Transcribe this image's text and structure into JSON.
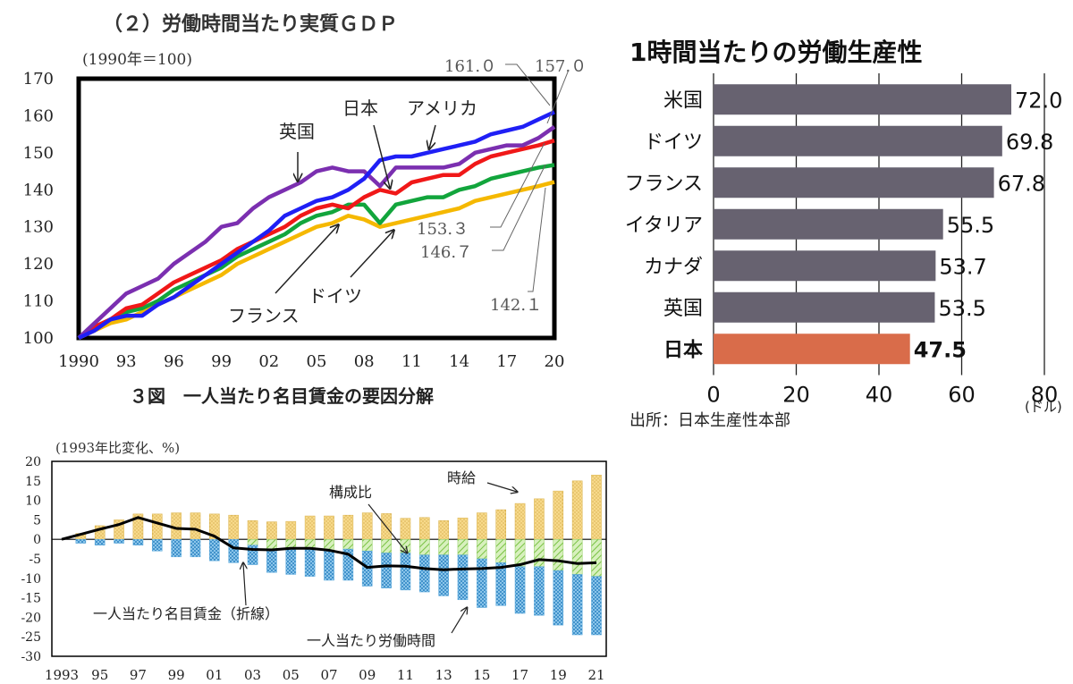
{
  "chart_data": [
    {
      "type": "line",
      "title": "（２）労働時間当たり実質ＧＤＰ",
      "unit_note": "(1990年＝100)",
      "x": [
        1990,
        1991,
        1992,
        1993,
        1994,
        1995,
        1996,
        1997,
        1998,
        1999,
        2000,
        2001,
        2002,
        2003,
        2004,
        2005,
        2006,
        2007,
        2008,
        2009,
        2010,
        2011,
        2012,
        2013,
        2014,
        2015,
        2016,
        2017,
        2018,
        2019,
        2020
      ],
      "x_tick_labels": [
        "1990",
        "93",
        "96",
        "99",
        "02",
        "05",
        "08",
        "11",
        "14",
        "17",
        "20"
      ],
      "ylim": [
        100,
        170
      ],
      "y_ticks": [
        100,
        110,
        120,
        130,
        140,
        150,
        160,
        170
      ],
      "series": [
        {
          "name": "アメリカ",
          "color": "#1f1ff5",
          "values": [
            100,
            102,
            105,
            106,
            106,
            109,
            111,
            114,
            117,
            120,
            123,
            126,
            129,
            133,
            135,
            137,
            138,
            140,
            143,
            148,
            149,
            149,
            150,
            151,
            152,
            153,
            155,
            156,
            157,
            159,
            161
          ]
        },
        {
          "name": "英国",
          "color": "#7b2fb0",
          "values": [
            100,
            104,
            108,
            112,
            114,
            116,
            120,
            123,
            126,
            130,
            131,
            135,
            138,
            140,
            142,
            145,
            146,
            145,
            145,
            141,
            146,
            146,
            146,
            146,
            147,
            150,
            151,
            152,
            152,
            154,
            157
          ]
        },
        {
          "name": "日本",
          "color": "#f01818",
          "values": [
            100,
            103,
            105,
            108,
            109,
            112,
            115,
            117,
            119,
            121,
            124,
            126,
            128,
            130,
            133,
            135,
            136,
            135,
            138,
            140,
            139,
            142,
            143,
            144,
            144,
            147,
            149,
            150,
            151,
            152,
            153.3
          ]
        },
        {
          "name": "ドイツ",
          "color": "#12a53c",
          "values": [
            100,
            103,
            105,
            107,
            108,
            110,
            113,
            115,
            117,
            119,
            122,
            124,
            126,
            128,
            131,
            133,
            134,
            136,
            136,
            131,
            136,
            137,
            138,
            138,
            140,
            141,
            143,
            144,
            145,
            146,
            146.7
          ]
        },
        {
          "name": "フランス",
          "color": "#f5b800",
          "values": [
            100,
            102,
            104,
            105,
            107,
            109,
            111,
            113,
            115,
            117,
            120,
            122,
            124,
            126,
            128,
            130,
            131,
            133,
            132,
            130,
            131,
            132,
            133,
            134,
            135,
            137,
            138,
            139,
            140,
            141,
            142.1
          ]
        }
      ],
      "annotations": {
        "end_labels": [
          "161.０",
          "157.０",
          "153.３",
          "146.７",
          "142.１"
        ]
      }
    },
    {
      "type": "bar",
      "title": "1時間当たりの労働生産性",
      "categories": [
        "米国",
        "ドイツ",
        "フランス",
        "イタリア",
        "カナダ",
        "英国",
        "日本"
      ],
      "values": [
        72.0,
        69.8,
        67.8,
        55.5,
        53.7,
        53.5,
        47.5
      ],
      "value_labels": [
        "72.0",
        "69.8",
        "67.8",
        "55.5",
        "53.7",
        "53.5",
        "47.5"
      ],
      "highlight": "日本",
      "bar_color": "#676270",
      "highlight_color": "#d96c4a",
      "xlim": [
        0,
        80
      ],
      "x_ticks": [
        "0",
        "20",
        "40",
        "60",
        "80"
      ],
      "unit_label": "(ドル)",
      "source": "出所：日本生産性本部"
    },
    {
      "type": "bar",
      "title": "３図　一人当たり名目賃金の要因分解",
      "unit_note": "(1993年比変化、%)",
      "categories": [
        "1993",
        "1994",
        "1995",
        "1996",
        "1997",
        "1998",
        "1999",
        "2000",
        "2001",
        "2002",
        "2003",
        "2004",
        "2005",
        "2006",
        "2007",
        "2008",
        "2009",
        "2010",
        "2011",
        "2012",
        "2013",
        "2014",
        "2015",
        "2016",
        "2017",
        "2018",
        "2019",
        "2020",
        "2021"
      ],
      "x_tick_labels": [
        "1993",
        "95",
        "97",
        "99",
        "01",
        "03",
        "05",
        "07",
        "09",
        "11",
        "13",
        "15",
        "17",
        "19",
        "21"
      ],
      "ylim": [
        -30,
        20
      ],
      "y_ticks": [
        20,
        15,
        10,
        5,
        0,
        -5,
        -10,
        -15,
        -20,
        -25,
        -30
      ],
      "series": [
        {
          "name": "時給",
          "color": "#f7d98a",
          "values": [
            0,
            1.5,
            3.5,
            5,
            6.5,
            6.5,
            6.8,
            6.8,
            6.5,
            6.2,
            4.8,
            4.5,
            4.6,
            6,
            6,
            6.2,
            6.8,
            6.6,
            5.4,
            5.6,
            4.8,
            5.5,
            6.8,
            7.6,
            9.2,
            10.4,
            12.4,
            15,
            16.5
          ]
        },
        {
          "name": "構成比",
          "color": "#bfe59a",
          "values": [
            0,
            0,
            0,
            0,
            0,
            0,
            0,
            0,
            0,
            0,
            -1.5,
            -2.5,
            -2.5,
            -2.5,
            -3,
            -2.5,
            -3,
            -3.5,
            -3.5,
            -4,
            -4,
            -4,
            -5,
            -6,
            -7,
            -7,
            -8,
            -9,
            -9.5
          ]
        },
        {
          "name": "一人当たり労働時間",
          "color": "#7ec2ec",
          "values": [
            0,
            -1,
            -1.5,
            -1,
            -1.5,
            -3,
            -4.5,
            -4.5,
            -5.5,
            -6,
            -5,
            -6,
            -6.5,
            -7,
            -7.5,
            -8,
            -9,
            -9,
            -9.5,
            -9.5,
            -10.5,
            -11.5,
            -12.5,
            -11,
            -12,
            -12.5,
            -14,
            -15.5,
            -15
          ]
        },
        {
          "name": "一人当たり名目賃金（折線）",
          "color": "#000000",
          "values": [
            0,
            1.3,
            2.6,
            3.8,
            5.6,
            4.2,
            2.8,
            2.6,
            0.8,
            -2.2,
            -2.6,
            -2.7,
            -2.3,
            -2.3,
            -2.8,
            -3.8,
            -7.2,
            -6.8,
            -6.9,
            -7.5,
            -7.8,
            -7.6,
            -7.5,
            -7.2,
            -6.5,
            -5.2,
            -5.5,
            -6.2,
            -6.0
          ]
        }
      ]
    }
  ]
}
